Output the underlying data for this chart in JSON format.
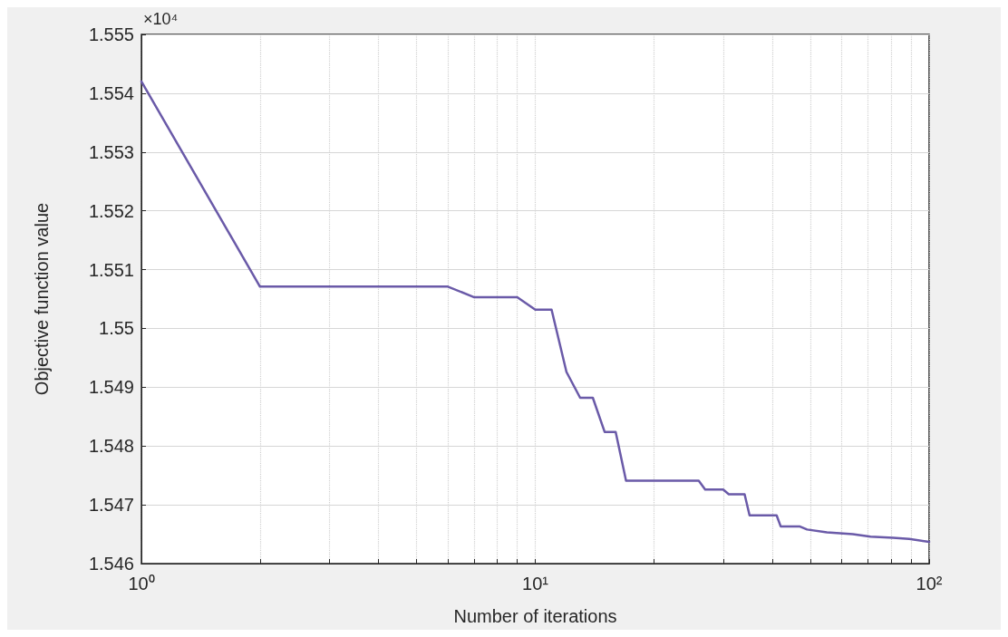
{
  "chart_data": {
    "type": "line",
    "xlabel": "Number of iterations",
    "ylabel": "Objective function value",
    "annotations": [
      "×10⁴"
    ],
    "log": "x",
    "grid": true,
    "marker": "none",
    "line_style": "solid",
    "xlim": [
      1,
      100
    ],
    "xticks": [
      {
        "value": 1,
        "label": "10⁰"
      },
      {
        "value": 2,
        "label": null
      },
      {
        "value": 3,
        "label": null
      },
      {
        "value": 4,
        "label": null
      },
      {
        "value": 5,
        "label": null
      },
      {
        "value": 6,
        "label": null
      },
      {
        "value": 7,
        "label": null
      },
      {
        "value": 8,
        "label": null
      },
      {
        "value": 9,
        "label": null
      },
      {
        "value": 10,
        "label": "10¹"
      },
      {
        "value": 20,
        "label": null
      },
      {
        "value": 30,
        "label": null
      },
      {
        "value": 40,
        "label": null
      },
      {
        "value": 50,
        "label": null
      },
      {
        "value": 60,
        "label": null
      },
      {
        "value": 70,
        "label": null
      },
      {
        "value": 80,
        "label": null
      },
      {
        "value": 90,
        "label": null
      },
      {
        "value": 100,
        "label": "10²"
      }
    ],
    "ylim": [
      1.546,
      1.555
    ],
    "yticks": [
      1.546,
      1.547,
      1.548,
      1.549,
      1.55,
      1.551,
      1.552,
      1.553,
      1.554,
      1.555
    ],
    "series": [
      {
        "color": "#6a5aa8",
        "x": [
          1,
          2,
          6,
          7,
          9,
          10,
          11,
          12,
          13,
          14,
          15,
          16,
          17,
          26,
          27,
          30,
          31,
          34,
          35,
          41,
          42,
          47,
          49,
          55,
          64,
          71,
          81,
          89,
          100
        ],
        "values": [
          1.5542,
          1.55071,
          1.55071,
          1.55053,
          1.55053,
          1.55032,
          1.55032,
          1.54926,
          1.54882,
          1.54882,
          1.54824,
          1.54824,
          1.54741,
          1.54741,
          1.54726,
          1.54726,
          1.54718,
          1.54718,
          1.54682,
          1.54682,
          1.54663,
          1.54663,
          1.54658,
          1.54653,
          1.5465,
          1.54646,
          1.54644,
          1.54642,
          1.54637
        ]
      }
    ]
  }
}
